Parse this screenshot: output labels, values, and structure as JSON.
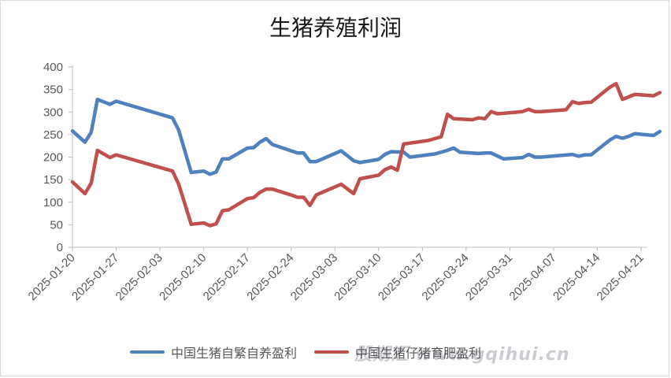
{
  "chart_data": {
    "type": "line",
    "title": "生猪养殖利润",
    "xlabel": "",
    "ylabel": "",
    "ylim": [
      0,
      400
    ],
    "yticks": [
      0,
      50,
      100,
      150,
      200,
      250,
      300,
      350,
      400
    ],
    "xlim": [
      "2025-01-20",
      "2025-04-22"
    ],
    "xticks": [
      "2025-01-20",
      "2025-01-27",
      "2025-02-03",
      "2025-02-10",
      "2025-02-17",
      "2025-02-24",
      "2025-03-03",
      "2025-03-10",
      "2025-03-17",
      "2025-03-24",
      "2025-03-31",
      "2025-04-07",
      "2025-04-14",
      "2025-04-21"
    ],
    "grid": false,
    "legend_position": "bottom",
    "series": [
      {
        "name": "中国生猪自繁自养盈利",
        "color": "#4f81bd",
        "points": [
          [
            "2025-01-20",
            258
          ],
          [
            "2025-01-22",
            233
          ],
          [
            "2025-01-23",
            255
          ],
          [
            "2025-01-24",
            328
          ],
          [
            "2025-01-26",
            317
          ],
          [
            "2025-01-27",
            324
          ],
          [
            "2025-02-05",
            287
          ],
          [
            "2025-02-06",
            260
          ],
          [
            "2025-02-08",
            166
          ],
          [
            "2025-02-10",
            169
          ],
          [
            "2025-02-11",
            162
          ],
          [
            "2025-02-12",
            167
          ],
          [
            "2025-02-13",
            196
          ],
          [
            "2025-02-14",
            196
          ],
          [
            "2025-02-17",
            220
          ],
          [
            "2025-02-18",
            221
          ],
          [
            "2025-02-19",
            233
          ],
          [
            "2025-02-20",
            241
          ],
          [
            "2025-02-21",
            228
          ],
          [
            "2025-02-25",
            209
          ],
          [
            "2025-02-26",
            209
          ],
          [
            "2025-02-27",
            190
          ],
          [
            "2025-02-28",
            190
          ],
          [
            "2025-03-04",
            214
          ],
          [
            "2025-03-06",
            192
          ],
          [
            "2025-03-07",
            188
          ],
          [
            "2025-03-10",
            195
          ],
          [
            "2025-03-11",
            206
          ],
          [
            "2025-03-12",
            212
          ],
          [
            "2025-03-14",
            211
          ],
          [
            "2025-03-15",
            200
          ],
          [
            "2025-03-19",
            207
          ],
          [
            "2025-03-21",
            215
          ],
          [
            "2025-03-22",
            220
          ],
          [
            "2025-03-23",
            211
          ],
          [
            "2025-03-26",
            208
          ],
          [
            "2025-03-27",
            209
          ],
          [
            "2025-03-28",
            209
          ],
          [
            "2025-03-30",
            196
          ],
          [
            "2025-04-02",
            199
          ],
          [
            "2025-04-03",
            206
          ],
          [
            "2025-04-04",
            200
          ],
          [
            "2025-04-05",
            200
          ],
          [
            "2025-04-10",
            206
          ],
          [
            "2025-04-11",
            202
          ],
          [
            "2025-04-12",
            205
          ],
          [
            "2025-04-13",
            205
          ],
          [
            "2025-04-16",
            238
          ],
          [
            "2025-04-17",
            246
          ],
          [
            "2025-04-18",
            242
          ],
          [
            "2025-04-19",
            246
          ],
          [
            "2025-04-20",
            252
          ],
          [
            "2025-04-23",
            248
          ],
          [
            "2025-04-24",
            257
          ]
        ]
      },
      {
        "name": "中国生猪仔猪育肥盈利",
        "color": "#c0504d",
        "points": [
          [
            "2025-01-20",
            145
          ],
          [
            "2025-01-22",
            119
          ],
          [
            "2025-01-23",
            142
          ],
          [
            "2025-01-24",
            215
          ],
          [
            "2025-01-26",
            199
          ],
          [
            "2025-01-27",
            205
          ],
          [
            "2025-02-05",
            169
          ],
          [
            "2025-02-06",
            140
          ],
          [
            "2025-02-08",
            51
          ],
          [
            "2025-02-10",
            54
          ],
          [
            "2025-02-11",
            48
          ],
          [
            "2025-02-12",
            52
          ],
          [
            "2025-02-13",
            81
          ],
          [
            "2025-02-14",
            83
          ],
          [
            "2025-02-17",
            108
          ],
          [
            "2025-02-18",
            110
          ],
          [
            "2025-02-19",
            122
          ],
          [
            "2025-02-20",
            129
          ],
          [
            "2025-02-21",
            129
          ],
          [
            "2025-02-24",
            116
          ],
          [
            "2025-02-25",
            111
          ],
          [
            "2025-02-26",
            111
          ],
          [
            "2025-02-27",
            93
          ],
          [
            "2025-02-28",
            116
          ],
          [
            "2025-03-04",
            140
          ],
          [
            "2025-03-06",
            119
          ],
          [
            "2025-03-07",
            152
          ],
          [
            "2025-03-10",
            160
          ],
          [
            "2025-03-11",
            172
          ],
          [
            "2025-03-12",
            178
          ],
          [
            "2025-03-13",
            171
          ],
          [
            "2025-03-14",
            229
          ],
          [
            "2025-03-18",
            237
          ],
          [
            "2025-03-19",
            241
          ],
          [
            "2025-03-20",
            245
          ],
          [
            "2025-03-21",
            295
          ],
          [
            "2025-03-22",
            285
          ],
          [
            "2025-03-25",
            283
          ],
          [
            "2025-03-26",
            287
          ],
          [
            "2025-03-27",
            285
          ],
          [
            "2025-03-28",
            301
          ],
          [
            "2025-03-29",
            296
          ],
          [
            "2025-04-02",
            301
          ],
          [
            "2025-04-03",
            306
          ],
          [
            "2025-04-04",
            301
          ],
          [
            "2025-04-05",
            301
          ],
          [
            "2025-04-09",
            305
          ],
          [
            "2025-04-10",
            323
          ],
          [
            "2025-04-11",
            319
          ],
          [
            "2025-04-12",
            321
          ],
          [
            "2025-04-13",
            322
          ],
          [
            "2025-04-16",
            355
          ],
          [
            "2025-04-17",
            363
          ],
          [
            "2025-04-18",
            328
          ],
          [
            "2025-04-20",
            339
          ],
          [
            "2025-04-23",
            336
          ],
          [
            "2025-04-24",
            343
          ]
        ]
      }
    ]
  },
  "watermark": "股期汇 www.gqihui.cn"
}
